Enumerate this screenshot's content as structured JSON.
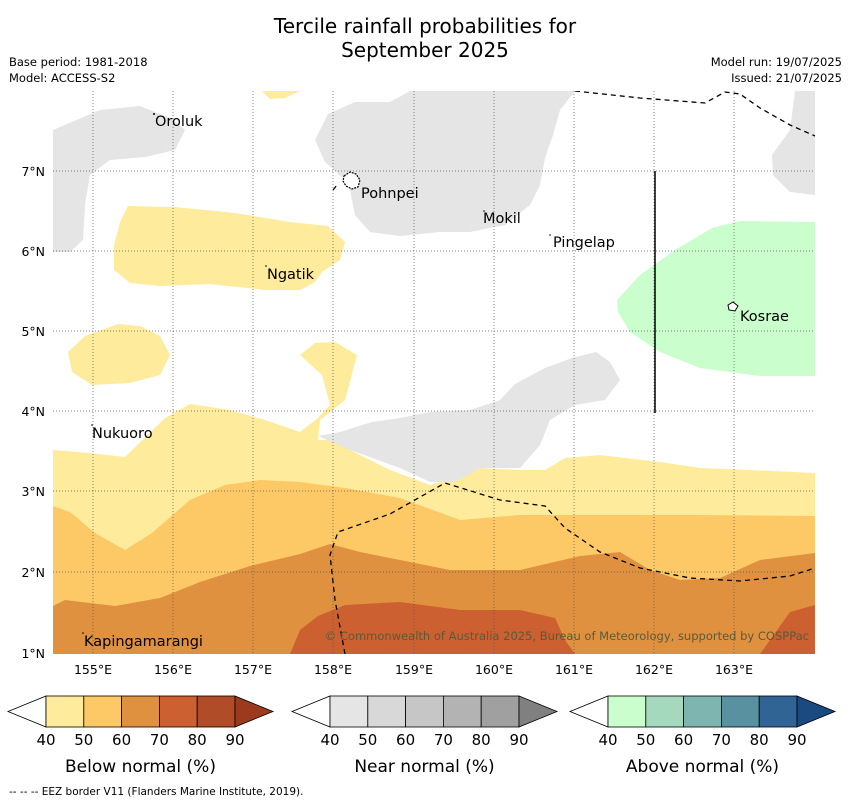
{
  "title_line1": "Tercile rainfall probabilities for",
  "title_line2": "September 2025",
  "base_period": "Base period: 1981-2018",
  "model": "Model: ACCESS-S2",
  "model_run": "Model run: 19/07/2025",
  "issued": "Issued: 21/07/2025",
  "copyright": "© Commonwealth of Australia 2025, Bureau of Meteorology, supported by COSPPac",
  "footer": "--  --  -- EEZ border V11 (Flanders Marine Institute, 2019).",
  "places": {
    "oroluk": "Oroluk",
    "pohnpei": "Pohnpei",
    "mokil": "Mokil",
    "pingelap": "Pingelap",
    "ngatik": "Ngatik",
    "kosrae": "Kosrae",
    "nukuoro": "Nukuoro",
    "kapingamarangi": "Kapingamarangi"
  },
  "lat_labels": [
    "7°N",
    "6°N",
    "5°N",
    "4°N",
    "3°N",
    "2°N",
    "1°N"
  ],
  "lon_labels": [
    "155°E",
    "156°E",
    "157°E",
    "158°E",
    "159°E",
    "160°E",
    "161°E",
    "162°E",
    "163°E"
  ],
  "legends": {
    "below": {
      "title": "Below normal (%)",
      "ticks": [
        "40",
        "50",
        "60",
        "70",
        "80",
        "90"
      ],
      "colors": [
        "#ffeb9c",
        "#fdc966",
        "#e0913f",
        "#cd6030",
        "#b14c28",
        "#9b3a1d"
      ]
    },
    "near": {
      "title": "Near normal (%)",
      "ticks": [
        "40",
        "50",
        "60",
        "70",
        "80",
        "90"
      ],
      "colors": [
        "#e5e5e5",
        "#d8d8d8",
        "#c6c6c6",
        "#b3b3b3",
        "#a0a0a0",
        "#808080"
      ]
    },
    "above": {
      "title": "Above normal (%)",
      "ticks": [
        "40",
        "50",
        "60",
        "70",
        "80",
        "90"
      ],
      "colors": [
        "#caffcd",
        "#a4d9be",
        "#7fb5b1",
        "#5a91a1",
        "#2f6494",
        "#1a4a80"
      ]
    }
  }
}
